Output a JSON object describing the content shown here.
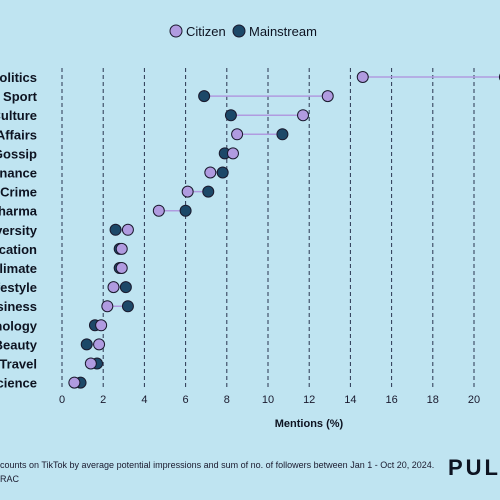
{
  "chart_data": {
    "type": "dot",
    "legend": {
      "placement": "top-center",
      "entries": [
        {
          "name": "Citizen",
          "color": "#b09be0"
        },
        {
          "name": "Mainstream",
          "color": "#1c4868"
        }
      ]
    },
    "xlabel": "Mentions (%)",
    "xlim": [
      0,
      21
    ],
    "xticks": [
      "0",
      "2",
      "4",
      "6",
      "8",
      "10",
      "12",
      "14",
      "16",
      "18",
      "20"
    ],
    "grid": "vertical dashed",
    "categories": [
      {
        "label": "Politics",
        "citizen": 14.6,
        "mainstream": 21.5
      },
      {
        "label": "Sport",
        "citizen": 12.9,
        "mainstream": 6.9
      },
      {
        "label": "Culture",
        "citizen": 11.7,
        "mainstream": 8.2
      },
      {
        "label": "n Affairs",
        "citizen": 8.5,
        "mainstream": 10.7
      },
      {
        "label": "Gossip",
        "citizen": 8.3,
        "mainstream": 7.9
      },
      {
        "label": "Finance",
        "citizen": 7.2,
        "mainstream": 7.8
      },
      {
        "label": "Crime",
        "citizen": 6.1,
        "mainstream": 7.1
      },
      {
        "label": "Pharma",
        "citizen": 4.7,
        "mainstream": 6.0
      },
      {
        "label": "Diversity",
        "citizen": 3.2,
        "mainstream": 2.6
      },
      {
        "label": "lucation",
        "citizen": 2.9,
        "mainstream": 2.8
      },
      {
        "label": "Climate",
        "citizen": 2.9,
        "mainstream": 2.8
      },
      {
        "label": "Lifestyle",
        "citizen": 2.5,
        "mainstream": 3.1
      },
      {
        "label": "Business",
        "citizen": 2.2,
        "mainstream": 3.2
      },
      {
        "label": "hnology",
        "citizen": 1.9,
        "mainstream": 1.6
      },
      {
        "label": "Beauty",
        "citizen": 1.8,
        "mainstream": 1.2
      },
      {
        "label": "Travel",
        "citizen": 1.4,
        "mainstream": 1.7
      },
      {
        "label": "Science",
        "citizen": 0.6,
        "mainstream": 0.9
      }
    ]
  },
  "footer": {
    "line1": "counts on TikTok by average potential impressions and sum of no. of followers between Jan 1 - Oct 20, 2024.",
    "line2": "RAC"
  },
  "brand": "PULS",
  "colors": {
    "background": "#bfe4f1",
    "citizen": "#b09be0",
    "mainstream": "#1c4868",
    "connector": "#b09be0",
    "dot_stroke": "#1a1a2e"
  }
}
